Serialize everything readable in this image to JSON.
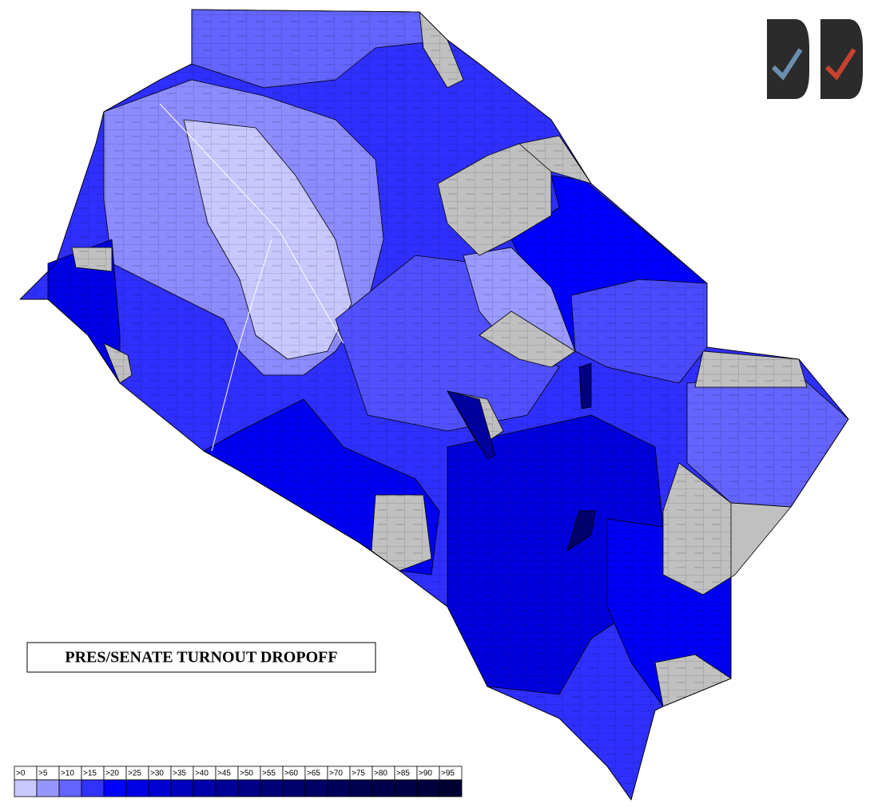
{
  "title": "PRES/SENATE TURNOUT DROPOFF",
  "legend": [
    {
      "label": ">0",
      "color": "#c8c8ff"
    },
    {
      "label": ">5",
      "color": "#9696ff"
    },
    {
      "label": ">10",
      "color": "#6464ff"
    },
    {
      "label": ">15",
      "color": "#3232ff"
    },
    {
      "label": ">20",
      "color": "#0000ff"
    },
    {
      "label": ">25",
      "color": "#0000e6"
    },
    {
      "label": ">30",
      "color": "#0000d2"
    },
    {
      "label": ">35",
      "color": "#0000be"
    },
    {
      "label": ">40",
      "color": "#0000aa"
    },
    {
      "label": ">45",
      "color": "#000096"
    },
    {
      "label": ">50",
      "color": "#000087"
    },
    {
      "label": ">55",
      "color": "#000078"
    },
    {
      "label": ">60",
      "color": "#00006e"
    },
    {
      "label": ">65",
      "color": "#000064"
    },
    {
      "label": ">70",
      "color": "#00005a"
    },
    {
      "label": ">75",
      "color": "#000050"
    },
    {
      "label": ">80",
      "color": "#00004b"
    },
    {
      "label": ">85",
      "color": "#000046"
    },
    {
      "label": ">90",
      "color": "#00003c"
    },
    {
      "label": ">95",
      "color": "#000032"
    }
  ]
}
